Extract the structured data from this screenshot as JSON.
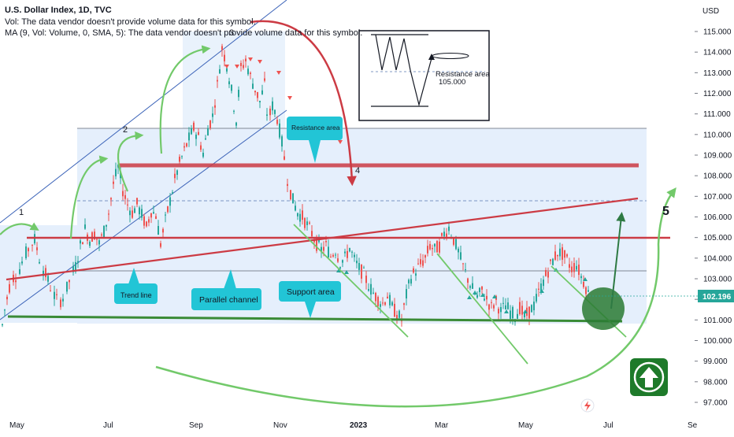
{
  "header": {
    "title": "U.S. Dollar Index, 1D, TVC",
    "vol_note": "Vol: The data vendor doesn't provide volume data for this symbol.",
    "ma_note": "MA (9, Vol: Volume, 0, SMA, 5): The data vendor doesn't provide volume data for this symbol."
  },
  "chart_data": {
    "type": "candlestick",
    "currency": "USD",
    "y_range": [
      96.5,
      115.8
    ],
    "y_ticks": [
      "115.000",
      "114.000",
      "113.000",
      "112.000",
      "111.000",
      "110.000",
      "109.000",
      "108.000",
      "107.000",
      "106.000",
      "105.000",
      "104.000",
      "103.000",
      "102.000",
      "101.000",
      "100.000",
      "99.000",
      "98.000",
      "97.000"
    ],
    "x_ticks": [
      "May",
      "Jul",
      "Sep",
      "Nov",
      "2023",
      "Mar",
      "May",
      "Jul",
      "Se"
    ],
    "x_ticks_bold": [
      "2023"
    ],
    "last_price": "102.196",
    "series_points": [
      [
        0,
        100
      ],
      [
        6,
        101.5
      ],
      [
        14,
        103
      ],
      [
        22,
        103.2
      ],
      [
        30,
        104
      ],
      [
        38,
        104.6
      ],
      [
        44,
        104.9
      ],
      [
        52,
        103.7
      ],
      [
        58,
        103.2
      ],
      [
        66,
        102.4
      ],
      [
        74,
        101.8
      ],
      [
        82,
        102.2
      ],
      [
        90,
        103.1
      ],
      [
        96,
        103.6
      ],
      [
        102,
        104.6
      ],
      [
        108,
        105.4
      ],
      [
        114,
        104.9
      ],
      [
        120,
        105.2
      ],
      [
        126,
        104.7
      ],
      [
        132,
        105.3
      ],
      [
        138,
        106.2
      ],
      [
        144,
        107.6
      ],
      [
        150,
        108.4
      ],
      [
        156,
        107.3
      ],
      [
        162,
        106.6
      ],
      [
        168,
        106.2
      ],
      [
        174,
        106.6
      ],
      [
        180,
        106.1
      ],
      [
        186,
        105.5
      ],
      [
        192,
        106.3
      ],
      [
        198,
        106.1
      ],
      [
        204,
        104.7
      ],
      [
        210,
        105.8
      ],
      [
        216,
        106.8
      ],
      [
        222,
        107.8
      ],
      [
        228,
        108.6
      ],
      [
        234,
        109.2
      ],
      [
        240,
        109.8
      ],
      [
        246,
        110.3
      ],
      [
        252,
        109.9
      ],
      [
        258,
        109.1
      ],
      [
        264,
        110.3
      ],
      [
        270,
        110.9
      ],
      [
        276,
        112.4
      ],
      [
        282,
        114.2
      ],
      [
        288,
        113.4
      ],
      [
        294,
        112.1
      ],
      [
        300,
        110.7
      ],
      [
        306,
        113.2
      ],
      [
        312,
        113.6
      ],
      [
        318,
        112.8
      ],
      [
        324,
        112.2
      ],
      [
        330,
        111.6
      ],
      [
        336,
        112.4
      ],
      [
        340,
        110.6
      ],
      [
        346,
        111.4
      ],
      [
        352,
        110.8
      ],
      [
        358,
        109.6
      ],
      [
        362,
        108.6
      ],
      [
        366,
        107.6
      ],
      [
        372,
        106.8
      ],
      [
        378,
        106.2
      ],
      [
        384,
        106.0
      ],
      [
        390,
        105.6
      ],
      [
        396,
        105.2
      ],
      [
        402,
        104.7
      ],
      [
        408,
        104.4
      ],
      [
        414,
        104.6
      ],
      [
        420,
        104.1
      ],
      [
        426,
        104.4
      ],
      [
        432,
        103.8
      ],
      [
        438,
        104.0
      ],
      [
        444,
        104.5
      ],
      [
        450,
        103.9
      ],
      [
        456,
        103.5
      ],
      [
        462,
        103.2
      ],
      [
        468,
        102.7
      ],
      [
        474,
        102.3
      ],
      [
        480,
        102.0
      ],
      [
        486,
        101.8
      ],
      [
        492,
        102.2
      ],
      [
        498,
        101.6
      ],
      [
        504,
        101.3
      ],
      [
        510,
        101.0
      ],
      [
        516,
        102.2
      ],
      [
        522,
        103.1
      ],
      [
        528,
        103.4
      ],
      [
        534,
        103.7
      ],
      [
        540,
        104.0
      ],
      [
        546,
        104.6
      ],
      [
        552,
        104.4
      ],
      [
        558,
        104.6
      ],
      [
        564,
        105.2
      ],
      [
        570,
        105.5
      ],
      [
        576,
        104.9
      ],
      [
        582,
        104.3
      ],
      [
        588,
        103.6
      ],
      [
        594,
        103.0
      ],
      [
        600,
        102.5
      ],
      [
        606,
        102.1
      ],
      [
        612,
        102.4
      ],
      [
        618,
        102.0
      ],
      [
        624,
        101.6
      ],
      [
        630,
        101.9
      ],
      [
        636,
        101.4
      ],
      [
        642,
        101.7
      ],
      [
        648,
        101.4
      ],
      [
        654,
        101.2
      ],
      [
        660,
        101.6
      ],
      [
        666,
        101.1
      ],
      [
        672,
        101.4
      ],
      [
        678,
        101.7
      ],
      [
        684,
        102.3
      ],
      [
        690,
        102.9
      ],
      [
        696,
        103.4
      ],
      [
        702,
        103.9
      ],
      [
        708,
        104.3
      ],
      [
        714,
        104.2
      ],
      [
        720,
        103.9
      ],
      [
        726,
        103.5
      ],
      [
        732,
        103.7
      ],
      [
        738,
        103.1
      ],
      [
        744,
        102.6
      ],
      [
        748,
        102.2
      ]
    ]
  },
  "annotations": {
    "wave_labels": [
      "1",
      "2",
      "3",
      "4",
      "5"
    ],
    "callouts": {
      "resistance_area_top": "Resistance area",
      "trend_line": "Trend line",
      "parallel_channel": "Parallel channel",
      "support_area": "Support area"
    },
    "inset": {
      "label": "Resistance area",
      "value": "105.000"
    }
  },
  "colors": {
    "bull": "#26a69a",
    "bear": "#ef5350",
    "arrow_green": "#72c96a",
    "resistance_red": "#cc3b44",
    "support_green": "#3a8b36",
    "callout": "#22c5d6",
    "zone_blue": "#cfe2f9",
    "price_tag": "#26a69a",
    "up_button": "#1e7a2a"
  },
  "icons": {
    "up_button": "arrow-up-icon",
    "logo": "tradingview-logo-icon"
  }
}
